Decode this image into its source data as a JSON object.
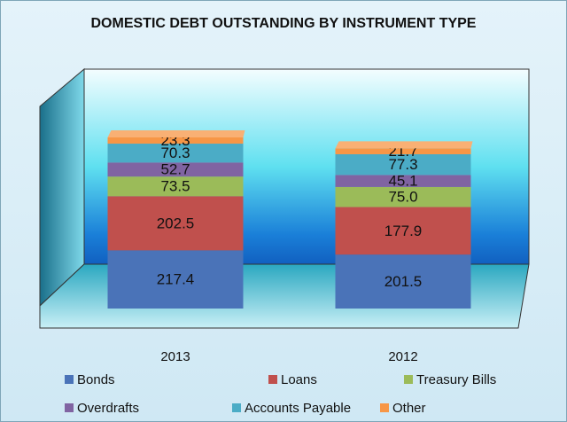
{
  "chart_data": {
    "type": "bar",
    "stacked": true,
    "three_d": true,
    "title": "DOMESTIC DEBT OUTSTANDING BY INSTRUMENT TYPE",
    "categories": [
      "2013",
      "2012"
    ],
    "series": [
      {
        "name": "Bonds",
        "color": "#4a73b8",
        "values": [
          217.4,
          201.5
        ],
        "value_labels": [
          "217.4",
          "201.5"
        ]
      },
      {
        "name": "Loans",
        "color": "#c0504d",
        "values": [
          202.5,
          177.9
        ],
        "value_labels": [
          "202.5",
          "177.9"
        ]
      },
      {
        "name": "Treasury Bills",
        "color": "#9bbb59",
        "values": [
          73.5,
          75.0
        ],
        "value_labels": [
          "73.5",
          "75.0"
        ]
      },
      {
        "name": "Overdrafts",
        "color": "#8064a2",
        "values": [
          52.7,
          45.1
        ],
        "value_labels": [
          "52.7",
          "45.1"
        ]
      },
      {
        "name": "Accounts Payable",
        "color": "#4bacc6",
        "values": [
          70.3,
          77.3
        ],
        "value_labels": [
          "70.3",
          "77.3"
        ]
      },
      {
        "name": "Other",
        "color": "#f79646",
        "values": [
          23.3,
          21.7
        ],
        "value_labels": [
          "23.3",
          "21.7"
        ]
      }
    ],
    "legend": "bottom"
  }
}
